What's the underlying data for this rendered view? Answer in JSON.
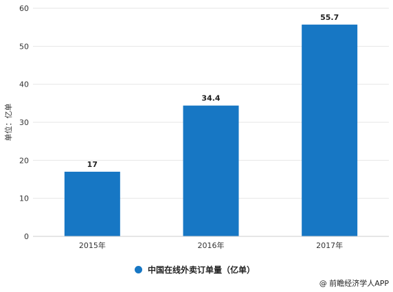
{
  "chart_data": {
    "type": "bar",
    "categories": [
      "2015年",
      "2016年",
      "2017年"
    ],
    "series": [
      {
        "name": "中国在线外卖订单量（亿单）",
        "values": [
          17,
          34.4,
          55.7
        ]
      }
    ],
    "data_labels": [
      "17",
      "34.4",
      "55.7"
    ],
    "ylabel": "单位：亿单",
    "ylim": [
      0,
      60
    ],
    "yticks": [
      0,
      10,
      20,
      30,
      40,
      50,
      60
    ],
    "grid": true,
    "legend_position": "bottom",
    "bar_color": "#1777c4"
  },
  "legend": {
    "label": "中国在线外卖订单量（亿单）"
  },
  "credit": "@ 前瞻经济学人APP"
}
